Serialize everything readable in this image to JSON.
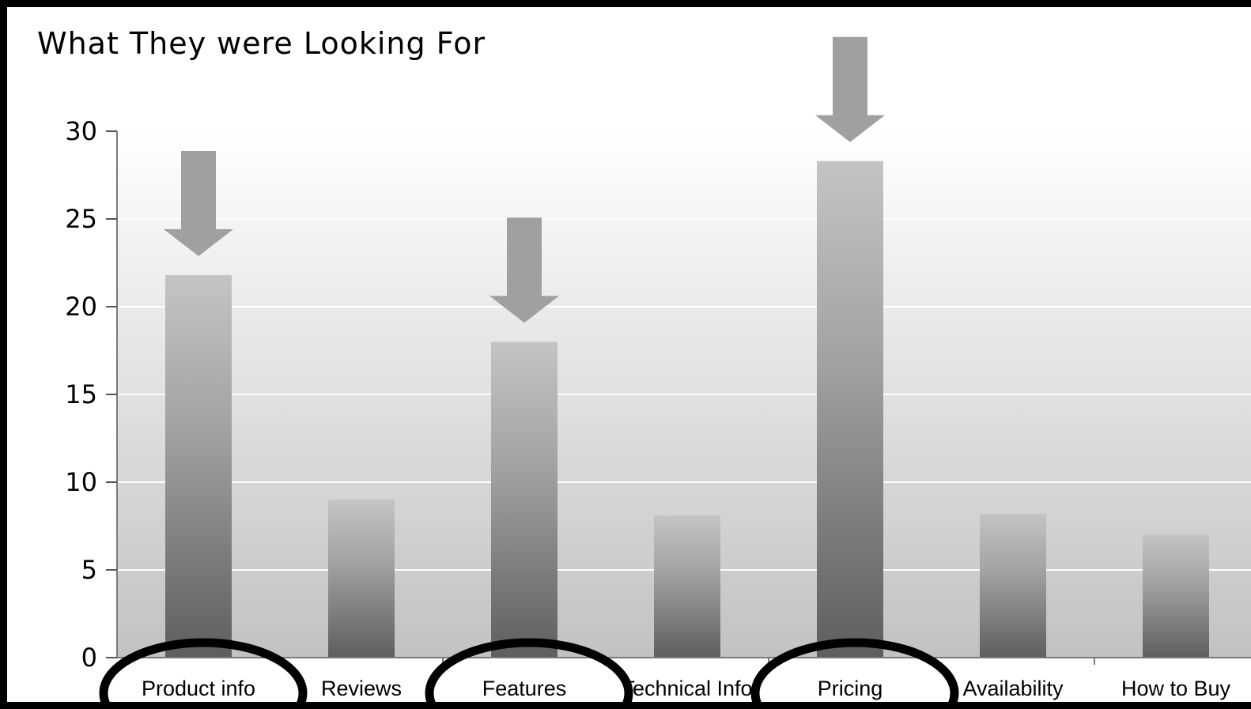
{
  "chart_data": {
    "type": "bar",
    "title": "What They were Looking For",
    "categories": [
      "Product info",
      "Reviews",
      "Features",
      "Technical Info",
      "Pricing",
      "Availability",
      "How to Buy"
    ],
    "values": [
      21.8,
      9,
      18,
      8.1,
      28.3,
      8.2,
      7
    ],
    "ylim": [
      0,
      30
    ],
    "yticks": [
      0,
      5,
      10,
      15,
      20,
      25,
      30
    ],
    "grid": true,
    "legend": "none",
    "annotations": {
      "arrows_over": [
        "Product info",
        "Features",
        "Pricing"
      ],
      "circled_labels": [
        "Product info",
        "Features",
        "Pricing"
      ]
    }
  },
  "colors": {
    "bar_top": "#c4c4c4",
    "bar_bottom": "#5e5e5e",
    "arrow": "#a0a0a0",
    "grid": "#ffffff",
    "ellipse": "#000000"
  }
}
